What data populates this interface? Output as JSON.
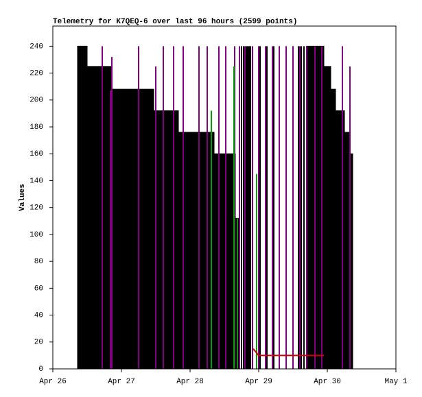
{
  "chart_data": {
    "type": "line",
    "title": "Telemetry for K7QEQ-6 over last 96 hours (2599 points)",
    "y_label": "Values",
    "xlim": [
      0,
      5
    ],
    "xticks": [
      {
        "value": 0,
        "label": "Apr 26"
      },
      {
        "value": 1,
        "label": "Apr 27"
      },
      {
        "value": 2,
        "label": "Apr 28"
      },
      {
        "value": 3,
        "label": "Apr 29"
      },
      {
        "value": 4,
        "label": "Apr 30"
      },
      {
        "value": 5,
        "label": "May 1"
      }
    ],
    "ylim": [
      0,
      255
    ],
    "yticks": [
      0,
      20,
      40,
      60,
      80,
      100,
      120,
      140,
      160,
      180,
      200,
      220,
      240
    ],
    "series": [
      {
        "color": "#000000",
        "draw": "area",
        "x": [
          0.36,
          0.5,
          0.85,
          1.47,
          1.83,
          2.35,
          2.66,
          2.72
        ],
        "values": [
          240,
          225,
          208,
          192,
          176,
          160,
          112,
          112
        ]
      },
      {
        "color": "#000000",
        "draw": "area",
        "x": [
          3.7,
          3.95,
          4.05,
          4.12,
          4.25,
          4.32,
          4.37
        ],
        "values": [
          240,
          225,
          208,
          192,
          176,
          160,
          160
        ]
      },
      {
        "color": "#000000",
        "draw": "spike",
        "x": [
          2.75,
          2.78,
          2.82,
          2.84,
          2.86,
          2.88,
          3.02,
          3.12,
          3.22,
          3.3,
          3.4,
          3.5,
          3.58,
          3.62,
          3.66
        ],
        "values": [
          240,
          240,
          240,
          240,
          240,
          240,
          240,
          240,
          240,
          240,
          240,
          240,
          240,
          240,
          240
        ]
      },
      {
        "color": "#800080",
        "draw": "spike",
        "x": [
          0.72,
          0.84,
          0.86,
          1.25,
          1.5,
          1.61,
          1.76,
          1.9,
          2.13,
          2.25,
          2.42,
          2.52,
          2.65,
          2.72,
          2.8,
          2.91,
          3.0,
          3.1,
          3.2,
          3.3,
          3.4,
          3.5,
          3.6,
          3.7,
          3.82,
          3.92,
          4.22,
          4.33
        ],
        "values": [
          240,
          207,
          232,
          240,
          225,
          240,
          240,
          240,
          240,
          240,
          240,
          240,
          240,
          240,
          240,
          240,
          240,
          240,
          240,
          240,
          240,
          240,
          240,
          240,
          240,
          240,
          240,
          225
        ]
      },
      {
        "color": "#00a000",
        "draw": "spike",
        "x": [
          2.31,
          2.64,
          2.69,
          2.97
        ],
        "values": [
          192,
          225,
          112,
          145
        ]
      },
      {
        "color": "#cc0000",
        "draw": "line",
        "x": [
          2.92,
          3.0,
          3.95
        ],
        "values": [
          15,
          10,
          10
        ]
      }
    ]
  }
}
